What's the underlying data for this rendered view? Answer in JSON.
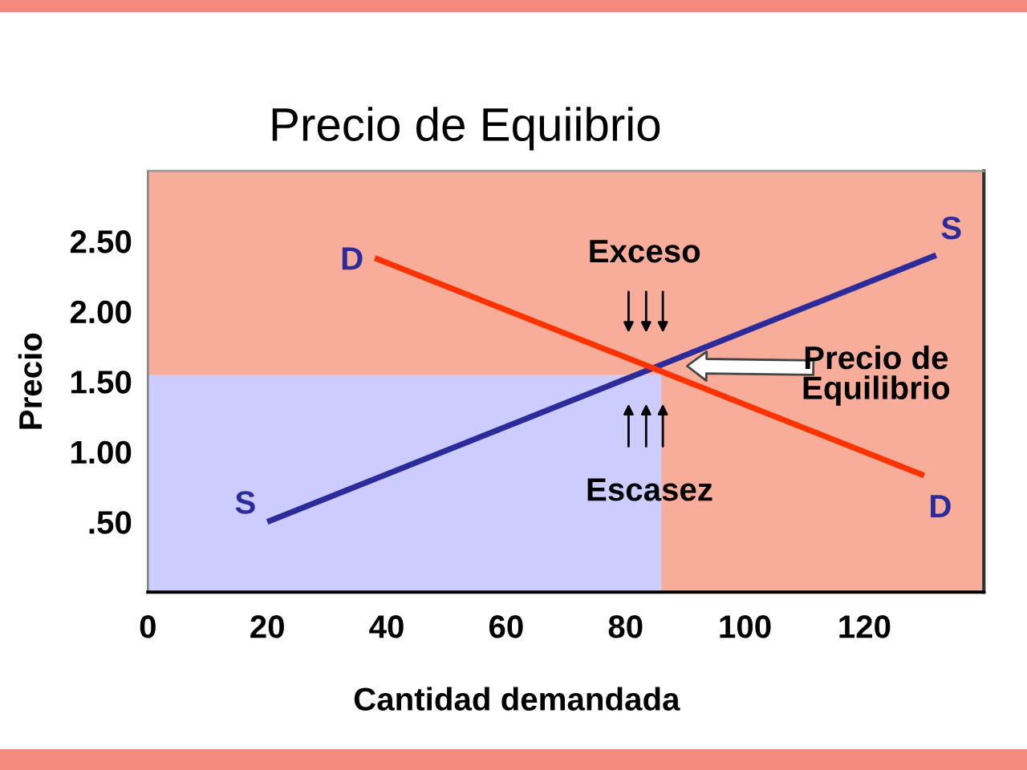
{
  "chart_data": {
    "type": "line",
    "title": "Precio de Equiibrio",
    "xlabel": "Cantidad demandada",
    "ylabel": "Precio",
    "xlim": [
      0,
      140
    ],
    "ylim": [
      0,
      3
    ],
    "xticks": [
      0,
      20,
      40,
      60,
      80,
      100,
      120
    ],
    "yticks": [
      {
        "value": 0.5,
        "label": ".50"
      },
      {
        "value": 1,
        "label": "1.00"
      },
      {
        "value": 1.5,
        "label": "1.50"
      },
      {
        "value": 2,
        "label": "2.00"
      },
      {
        "value": 2.5,
        "label": "2.50"
      }
    ],
    "series": [
      {
        "type": "area",
        "color": "#ccccff",
        "x": [
          0,
          86
        ],
        "values": [
          1.55,
          1.55
        ]
      },
      {
        "name": "S",
        "color": "#2b2b9b",
        "x": [
          20,
          132
        ],
        "values": [
          0.5,
          2.4
        ]
      },
      {
        "name": "D",
        "color": "#ff3300",
        "x": [
          38,
          130
        ],
        "values": [
          2.38,
          0.83
        ]
      }
    ],
    "annotations": [
      "Exceso",
      "Escasez",
      "Precio de\nEquilibrio"
    ],
    "line_style": "solid"
  }
}
